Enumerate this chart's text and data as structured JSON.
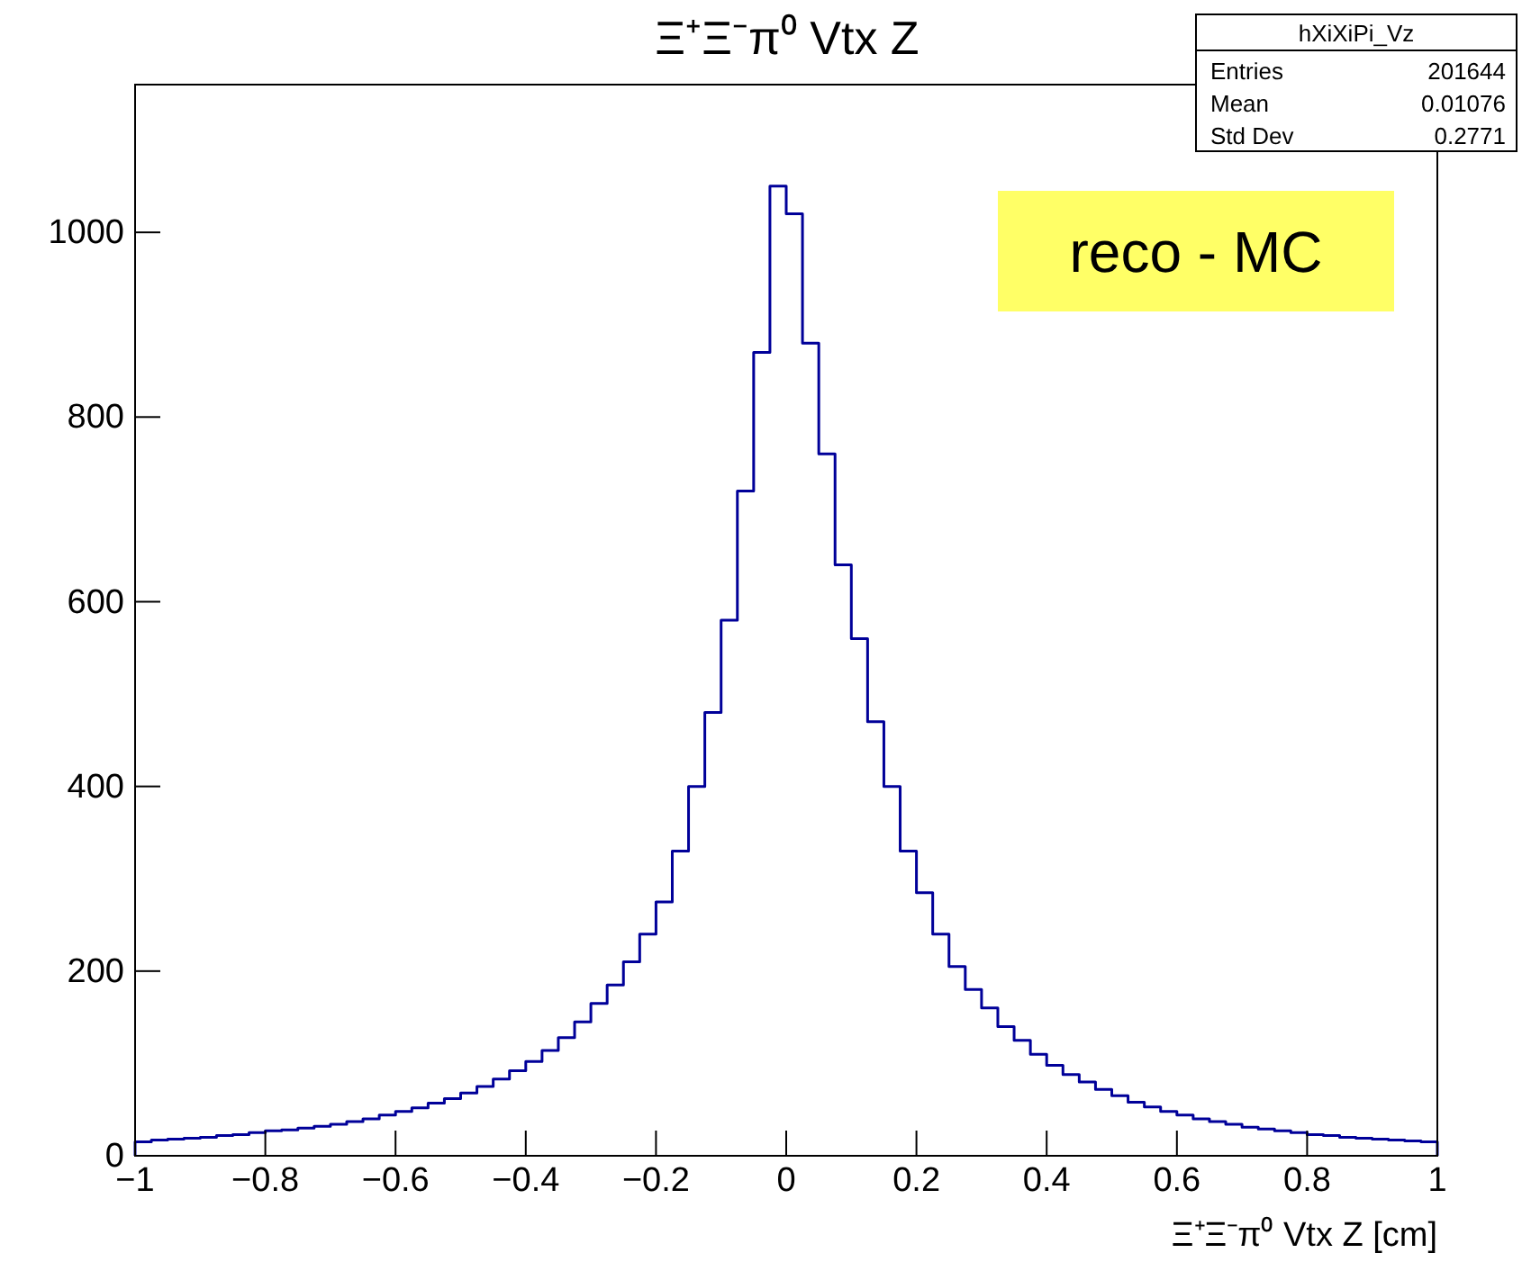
{
  "chart_data": {
    "type": "histogram",
    "title": "Ξ⁺Ξ⁻π⁰ Vtx Z",
    "xlabel": "Ξ⁺Ξ⁻π⁰ Vtx Z [cm]",
    "annotations": [
      "hXiXiPi_Vz",
      "Entries",
      "201644",
      "Mean",
      "0.01076",
      "Std Dev",
      "0.2771",
      "reco - MC"
    ],
    "color": "#000099",
    "bins": [
      -1,
      -0.975,
      -0.95,
      -0.925,
      -0.9,
      -0.875,
      -0.85,
      -0.825,
      -0.8,
      -0.775,
      -0.75,
      -0.725,
      -0.7,
      -0.675,
      -0.65,
      -0.625,
      -0.6,
      -0.575,
      -0.55,
      -0.525,
      -0.5,
      -0.475,
      -0.45,
      -0.425,
      -0.4,
      -0.375,
      -0.35,
      -0.325,
      -0.3,
      -0.275,
      -0.25,
      -0.225,
      -0.2,
      -0.175,
      -0.15,
      -0.125,
      -0.1,
      -0.075,
      -0.05,
      -0.025,
      0,
      0.025,
      0.05,
      0.075,
      0.1,
      0.125,
      0.15,
      0.175,
      0.2,
      0.225,
      0.25,
      0.275,
      0.3,
      0.325,
      0.35,
      0.375,
      0.4,
      0.425,
      0.45,
      0.475,
      0.5,
      0.525,
      0.55,
      0.575,
      0.6,
      0.625,
      0.65,
      0.675,
      0.7,
      0.725,
      0.75,
      0.775,
      0.8,
      0.825,
      0.85,
      0.875,
      0.9,
      0.925,
      0.95,
      0.975,
      1
    ],
    "values": [
      15,
      17,
      18,
      19,
      20,
      22,
      23,
      25,
      27,
      28,
      30,
      32,
      34,
      37,
      40,
      44,
      48,
      52,
      57,
      62,
      68,
      75,
      83,
      92,
      102,
      114,
      128,
      145,
      165,
      185,
      210,
      240,
      275,
      330,
      400,
      480,
      580,
      720,
      870,
      1050,
      1020,
      880,
      760,
      640,
      560,
      470,
      400,
      330,
      285,
      240,
      205,
      180,
      160,
      140,
      125,
      110,
      98,
      88,
      80,
      72,
      65,
      58,
      53,
      48,
      44,
      40,
      37,
      34,
      31,
      29,
      27,
      25,
      23,
      22,
      20,
      19,
      18,
      17,
      16,
      15
    ],
    "xlim": [
      -1,
      1
    ],
    "ylim": [
      0,
      1160
    ],
    "xticks": [
      {
        "value": -1,
        "label": "−1"
      },
      {
        "value": -0.8,
        "label": "−0.8"
      },
      {
        "value": -0.6,
        "label": "−0.6"
      },
      {
        "value": -0.4,
        "label": "−0.4"
      },
      {
        "value": -0.2,
        "label": "−0.2"
      },
      0,
      0.2,
      0.4,
      0.6,
      0.8,
      1
    ],
    "yticks": [
      0,
      200,
      400,
      600,
      800,
      1000
    ],
    "grid": false
  }
}
